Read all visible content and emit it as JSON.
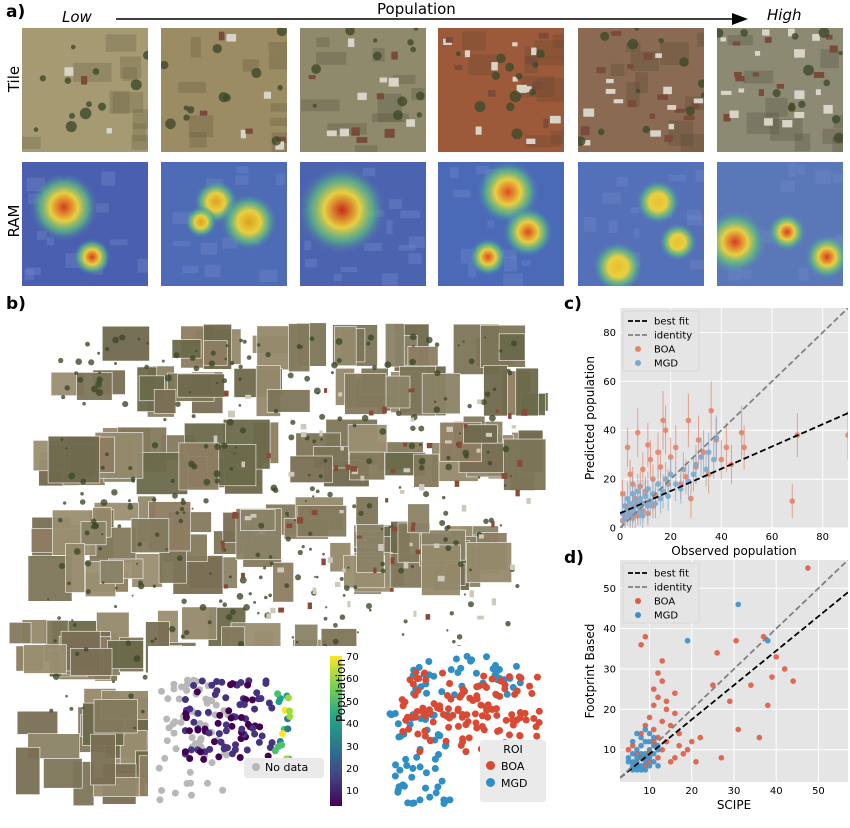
{
  "panel_a": {
    "label": "a)",
    "low_label": "Low",
    "high_label": "High",
    "arrow_label": "Population",
    "row_tile_label": "Tile",
    "row_ram_label": "RAM",
    "tile_palettes": [
      {
        "base": "#a69a73",
        "accent": "#6f6748"
      },
      {
        "base": "#9b8c63",
        "accent": "#6a5f3f"
      },
      {
        "base": "#8f8a6c",
        "accent": "#5c5a45"
      },
      {
        "base": "#9c5a3a",
        "accent": "#6e4a33"
      },
      {
        "base": "#8a6a52",
        "accent": "#5c4a3a"
      },
      {
        "base": "#8c8a72",
        "accent": "#5a5646"
      }
    ],
    "ram_palettes": [
      {
        "bg": "#4a5fb0",
        "hot": "#d93b1e"
      },
      {
        "bg": "#4e6bb5",
        "hot": "#e0a020"
      },
      {
        "bg": "#4c64b0",
        "hot": "#c82b18"
      },
      {
        "bg": "#4a6ab8",
        "hot": "#e04a20"
      },
      {
        "bg": "#5470b8",
        "hot": "#e8c030"
      },
      {
        "bg": "#5a78b8",
        "hot": "#d83a20"
      }
    ]
  },
  "panel_b": {
    "label": "b)",
    "colorbar_label": "Population",
    "colorbar_ticks": [
      "10",
      "20",
      "30",
      "40",
      "50",
      "60",
      "70"
    ],
    "no_data_label": "No data",
    "roi_legend_title": "ROI",
    "roi_legend_items": [
      {
        "label": "BOA",
        "color": "#d94a34"
      },
      {
        "label": "MGD",
        "color": "#2f8fc5"
      }
    ]
  },
  "chart_data": [
    {
      "id": "c",
      "panel_label": "c)",
      "type": "scatter",
      "xlabel": "Observed population",
      "ylabel": "Predicted population",
      "xlim": [
        0,
        90
      ],
      "ylim": [
        0,
        90
      ],
      "xticks": [
        0,
        20,
        40,
        60,
        80
      ],
      "yticks": [
        0,
        20,
        40,
        60,
        80
      ],
      "grid": true,
      "legend_position": "top-left",
      "legend": [
        {
          "label": "best fit",
          "style": "dashed",
          "color": "#000000"
        },
        {
          "label": "identity",
          "style": "dashed",
          "color": "#808080"
        },
        {
          "label": "BOA",
          "style": "marker",
          "color": "#e5836b"
        },
        {
          "label": "MGD",
          "style": "marker",
          "color": "#7aa9cf"
        }
      ],
      "lines": [
        {
          "name": "best fit",
          "x": [
            0,
            90
          ],
          "y": [
            6,
            47
          ],
          "color": "#000000"
        },
        {
          "name": "identity",
          "x": [
            0,
            90
          ],
          "y": [
            0,
            90
          ],
          "color": "#808080"
        }
      ],
      "series": [
        {
          "name": "BOA",
          "color": "#e5836b",
          "points": [
            [
              1,
              14,
              6
            ],
            [
              2,
              9,
              5
            ],
            [
              3,
              33,
              8
            ],
            [
              4,
              22,
              6
            ],
            [
              5,
              18,
              7
            ],
            [
              6,
              12,
              6
            ],
            [
              7,
              39,
              10
            ],
            [
              8,
              17,
              6
            ],
            [
              9,
              24,
              7
            ],
            [
              10,
              15,
              6
            ],
            [
              11,
              34,
              9
            ],
            [
              12,
              28,
              8
            ],
            [
              13,
              20,
              6
            ],
            [
              14,
              13,
              5
            ],
            [
              15,
              31,
              8
            ],
            [
              16,
              25,
              7
            ],
            [
              17,
              44,
              12
            ],
            [
              18,
              40,
              10
            ],
            [
              19,
              18,
              6
            ],
            [
              20,
              29,
              8
            ],
            [
              22,
              33,
              9
            ],
            [
              24,
              18,
              6
            ],
            [
              26,
              21,
              7
            ],
            [
              27,
              44,
              11
            ],
            [
              28,
              12,
              8
            ],
            [
              30,
              25,
              7
            ],
            [
              31,
              36,
              10
            ],
            [
              33,
              31,
              9
            ],
            [
              35,
              22,
              8
            ],
            [
              36,
              48,
              12
            ],
            [
              38,
              36,
              9
            ],
            [
              40,
              28,
              8
            ],
            [
              42,
              33,
              10
            ],
            [
              44,
              26,
              8
            ],
            [
              48,
              39,
              11
            ],
            [
              49,
              33,
              9
            ],
            [
              68,
              11,
              7
            ],
            [
              70,
              38,
              9
            ],
            [
              90,
              38,
              10
            ],
            [
              2,
              5,
              4
            ],
            [
              3,
              8,
              4
            ],
            [
              4,
              6,
              5
            ],
            [
              5,
              4,
              4
            ],
            [
              6,
              9,
              5
            ],
            [
              1,
              3,
              3
            ],
            [
              7,
              5,
              4
            ],
            [
              8,
              10,
              5
            ],
            [
              9,
              7,
              4
            ],
            [
              11,
              6,
              5
            ],
            [
              13,
              9,
              5
            ]
          ]
        },
        {
          "name": "MGD",
          "color": "#7aa9cf",
          "points": [
            [
              1,
              6,
              7
            ],
            [
              2,
              4,
              6
            ],
            [
              2,
              9,
              6
            ],
            [
              3,
              7,
              6
            ],
            [
              3,
              12,
              7
            ],
            [
              4,
              5,
              6
            ],
            [
              4,
              10,
              7
            ],
            [
              5,
              8,
              6
            ],
            [
              5,
              14,
              7
            ],
            [
              6,
              6,
              6
            ],
            [
              6,
              11,
              7
            ],
            [
              7,
              9,
              6
            ],
            [
              7,
              15,
              7
            ],
            [
              8,
              7,
              6
            ],
            [
              8,
              12,
              7
            ],
            [
              9,
              10,
              6
            ],
            [
              9,
              5,
              6
            ],
            [
              10,
              13,
              7
            ],
            [
              11,
              9,
              6
            ],
            [
              11,
              16,
              7
            ],
            [
              12,
              11,
              6
            ],
            [
              13,
              14,
              7
            ],
            [
              14,
              10,
              6
            ],
            [
              15,
              18,
              7
            ],
            [
              16,
              12,
              6
            ],
            [
              17,
              15,
              7
            ],
            [
              18,
              20,
              7
            ],
            [
              19,
              13,
              6
            ],
            [
              20,
              22,
              7
            ],
            [
              22,
              18,
              7
            ],
            [
              24,
              16,
              6
            ],
            [
              25,
              24,
              7
            ],
            [
              27,
              19,
              7
            ],
            [
              29,
              22,
              7
            ],
            [
              30,
              26,
              8
            ],
            [
              32,
              29,
              8
            ],
            [
              34,
              24,
              7
            ],
            [
              35,
              31,
              8
            ],
            [
              37,
              28,
              8
            ],
            [
              38,
              37,
              9
            ]
          ]
        }
      ]
    },
    {
      "id": "d",
      "panel_label": "d)",
      "type": "scatter",
      "xlabel": "SCIPE",
      "ylabel": "Footprint Based",
      "xlim": [
        3,
        57
      ],
      "ylim": [
        2,
        57
      ],
      "xticks": [
        10,
        20,
        30,
        40,
        50
      ],
      "yticks": [
        10,
        20,
        30,
        40,
        50
      ],
      "grid": true,
      "legend_position": "top-left",
      "legend": [
        {
          "label": "best fit",
          "style": "dashed",
          "color": "#000000"
        },
        {
          "label": "identity",
          "style": "dashed",
          "color": "#808080"
        },
        {
          "label": "BOA",
          "style": "marker",
          "color": "#e05a44"
        },
        {
          "label": "MGD",
          "style": "marker",
          "color": "#3a8fc8"
        }
      ],
      "lines": [
        {
          "name": "best fit",
          "x": [
            3,
            57
          ],
          "y": [
            3,
            49
          ],
          "color": "#000000"
        },
        {
          "name": "identity",
          "x": [
            3,
            57
          ],
          "y": [
            3,
            57
          ],
          "color": "#808080"
        }
      ],
      "series": [
        {
          "name": "BOA",
          "color": "#e05a44",
          "points": [
            [
              47.5,
              55
            ],
            [
              20,
              44
            ],
            [
              37,
              38
            ],
            [
              30.5,
              37
            ],
            [
              26,
              34
            ],
            [
              40,
              33
            ],
            [
              42,
              30
            ],
            [
              39,
              28
            ],
            [
              44,
              27
            ],
            [
              25,
              26
            ],
            [
              34,
              26
            ],
            [
              29,
              22
            ],
            [
              38,
              21
            ],
            [
              8,
              36
            ],
            [
              9,
              38
            ],
            [
              13,
              32
            ],
            [
              12,
              29
            ],
            [
              13,
              27
            ],
            [
              11,
              25
            ],
            [
              16,
              24
            ],
            [
              12,
              23
            ],
            [
              14,
              22
            ],
            [
              11,
              21
            ],
            [
              14,
              20
            ],
            [
              16,
              19
            ],
            [
              10,
              18
            ],
            [
              13,
              17
            ],
            [
              15,
              16
            ],
            [
              11,
              15
            ],
            [
              17,
              14
            ],
            [
              12,
              13
            ],
            [
              14,
              12
            ],
            [
              22,
              13
            ],
            [
              31,
              15
            ],
            [
              36,
              13
            ],
            [
              27,
              8
            ],
            [
              21,
              7
            ],
            [
              18,
              9
            ],
            [
              16,
              8
            ],
            [
              19,
              10
            ],
            [
              9,
              16
            ],
            [
              8,
              14
            ],
            [
              11,
              12
            ],
            [
              13,
              10
            ],
            [
              10,
              9
            ],
            [
              12,
              8
            ],
            [
              15,
              7
            ],
            [
              9,
              6
            ],
            [
              17,
              11
            ],
            [
              20,
              12
            ],
            [
              7,
              9
            ],
            [
              8,
              8
            ],
            [
              10,
              7
            ],
            [
              6,
              11
            ],
            [
              5,
              10
            ]
          ]
        },
        {
          "name": "MGD",
          "color": "#3a8fc8",
          "points": [
            [
              31,
              46
            ],
            [
              19,
              37
            ],
            [
              38,
              37
            ],
            [
              5,
              8
            ],
            [
              6,
              6
            ],
            [
              6,
              9
            ],
            [
              7,
              5
            ],
            [
              7,
              7
            ],
            [
              7,
              10
            ],
            [
              8,
              6
            ],
            [
              8,
              8
            ],
            [
              8,
              11
            ],
            [
              9,
              7
            ],
            [
              9,
              9
            ],
            [
              9,
              12
            ],
            [
              10,
              6
            ],
            [
              10,
              8
            ],
            [
              10,
              10
            ],
            [
              11,
              7
            ],
            [
              11,
              9
            ],
            [
              12,
              10
            ],
            [
              12,
              6
            ],
            [
              6,
              12
            ],
            [
              7,
              14
            ],
            [
              8,
              13
            ],
            [
              9,
              15
            ],
            [
              10,
              14
            ],
            [
              11,
              11
            ],
            [
              5,
              7
            ],
            [
              6,
              7
            ],
            [
              7,
              8
            ],
            [
              8,
              9
            ],
            [
              9,
              8
            ],
            [
              10,
              12
            ],
            [
              11,
              13
            ],
            [
              12,
              11
            ],
            [
              6,
              5
            ],
            [
              7,
              6
            ],
            [
              8,
              5
            ],
            [
              9,
              5
            ]
          ]
        }
      ]
    }
  ]
}
